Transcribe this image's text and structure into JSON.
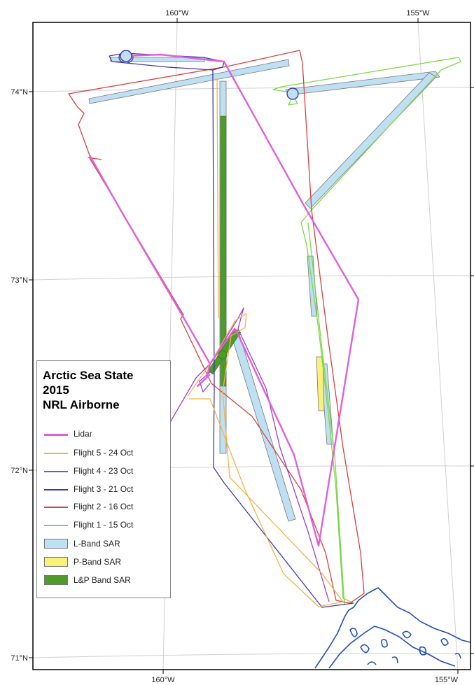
{
  "map": {
    "lon_labels_top": [
      "160°W",
      "155°W"
    ],
    "lon_labels_bottom": [
      "160°W",
      "155°W"
    ],
    "lat_labels": [
      "74°N",
      "73°N",
      "72°N",
      "71°N"
    ]
  },
  "legend": {
    "title_lines": [
      "Arctic Sea State",
      "2015",
      "NRL Airborne"
    ],
    "items": [
      {
        "label": "Lidar",
        "kind": "line",
        "color": "#e060d8"
      },
      {
        "label": "Flight 5 - 24 Oct",
        "kind": "line",
        "color": "#f5b24a"
      },
      {
        "label": "Flight 4 - 23 Oct",
        "kind": "line",
        "color": "#9b3fd1"
      },
      {
        "label": "Flight 3 - 21 Oct",
        "kind": "line",
        "color": "#3f3aa8"
      },
      {
        "label": "Flight 2 - 16 Oct",
        "kind": "line",
        "color": "#d94040"
      },
      {
        "label": "Flight 1 - 15 Oct",
        "kind": "line",
        "color": "#7fd64a"
      },
      {
        "label": "L-Band SAR",
        "kind": "box",
        "color": "#bfe0f2"
      },
      {
        "label": "P-Band SAR",
        "kind": "box",
        "color": "#fbf07a"
      },
      {
        "label": "L&P Band SAR",
        "kind": "box",
        "color": "#4e9a2a"
      }
    ]
  },
  "colors": {
    "coastline": "#1f4fb4",
    "frame": "#000000",
    "graticule": "#d0d0d0"
  }
}
